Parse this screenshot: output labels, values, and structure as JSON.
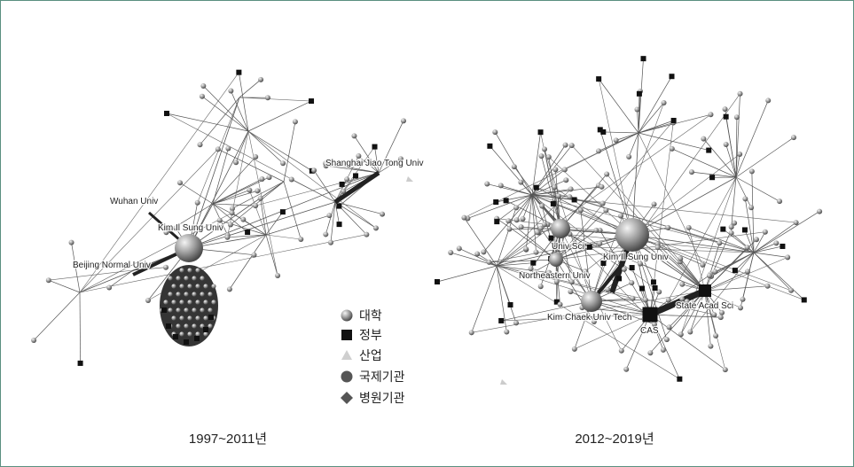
{
  "panels": [
    {
      "caption": "1997~2011년",
      "labels": [
        "Shanghai Jiao Tong Univ",
        "Wuhan Univ",
        "Kim Il Sung Univ",
        "Beijing Normal Univ"
      ]
    },
    {
      "caption": "2012~2019년",
      "labels": [
        "Univ Sci",
        "Kim Il Sung Univ",
        "Northeastern Univ",
        "Kim Chaek Univ Tech",
        "State Acad Sci",
        "CAS"
      ]
    }
  ],
  "legend": [
    "대학",
    "정부",
    "산업",
    "국제기관",
    "병원기관"
  ]
}
